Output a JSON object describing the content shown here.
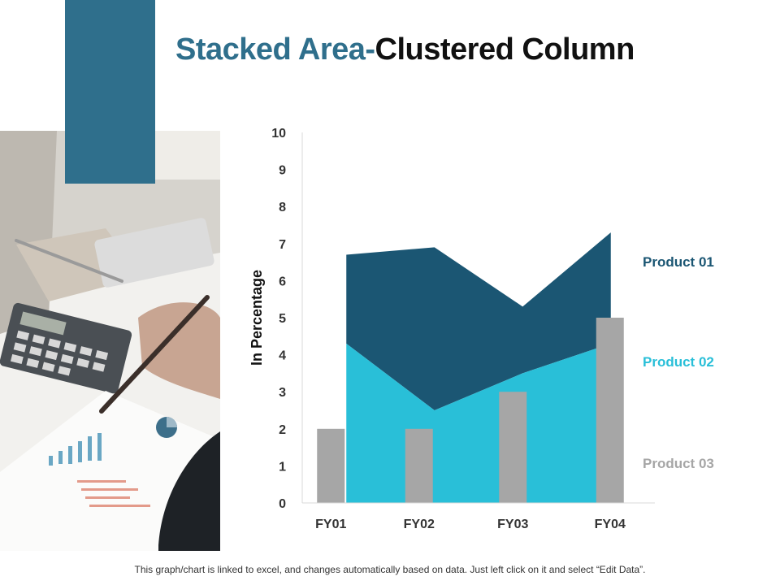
{
  "title": {
    "part1": "Stacked Area-",
    "part2": "Clustered Column"
  },
  "footer": "This graph/chart is linked to excel, and changes automatically based on data. Just left click on it and select “Edit Data”.",
  "colors": {
    "accent": "#2f6f8c",
    "product01": "#1b5673",
    "product02": "#29bfd8",
    "product03": "#a6a6a6",
    "axis": "#d9d9d9",
    "text": "#333333"
  },
  "chart_data": {
    "type": "bar",
    "subtype": "stacked-area + clustered-column",
    "categories": [
      "FY01",
      "FY02",
      "FY03",
      "FY04"
    ],
    "ylabel": "In Percentage",
    "ylim": [
      0,
      10
    ],
    "yticks": [
      "0",
      "1",
      "2",
      "3",
      "4",
      "5",
      "6",
      "7",
      "8",
      "9",
      "10"
    ],
    "grid": false,
    "legend": "right",
    "series": [
      {
        "name": "Product 01",
        "kind": "stacked-area",
        "values": [
          2.4,
          4.4,
          1.8,
          3.0
        ]
      },
      {
        "name": "Product 02",
        "kind": "stacked-area",
        "values": [
          4.3,
          2.5,
          3.5,
          4.3
        ]
      },
      {
        "name": "Product 03",
        "kind": "column",
        "values": [
          2,
          2,
          3,
          5
        ]
      }
    ]
  }
}
